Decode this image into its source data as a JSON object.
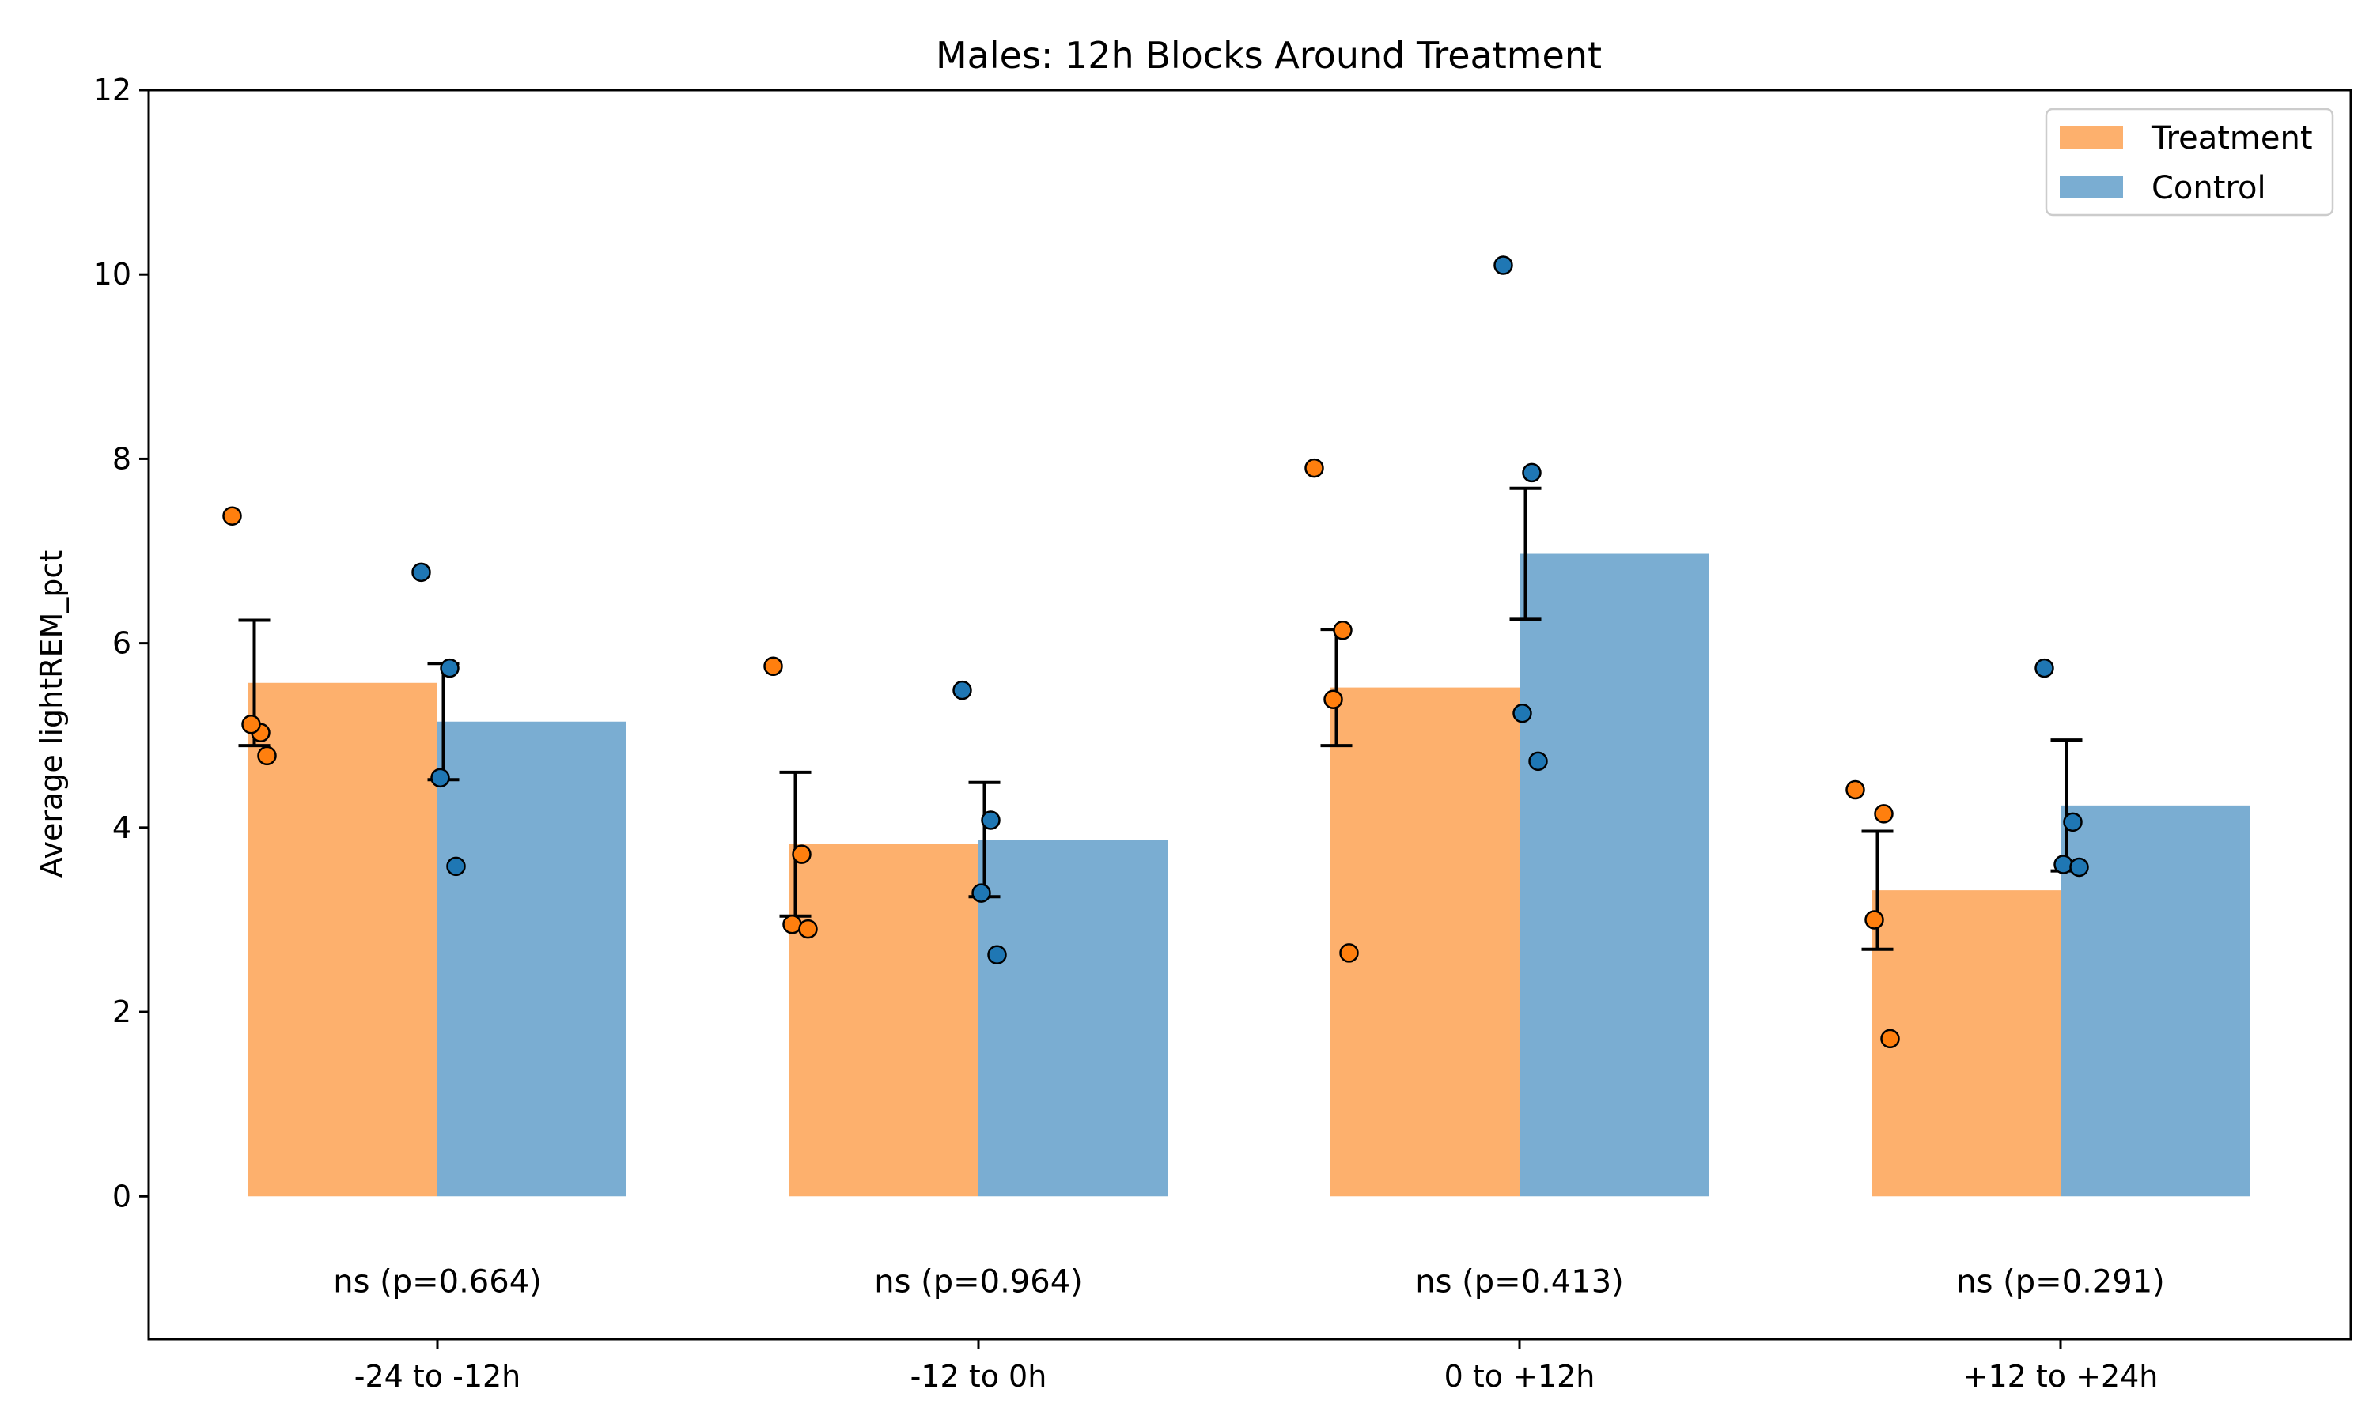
{
  "chart_data": {
    "type": "bar",
    "title": "Males: 12h Blocks Around Treatment",
    "xlabel": "",
    "ylabel": "Average lightREM_pct",
    "ylim": [
      -1.55,
      12
    ],
    "yticks": [
      0,
      2,
      4,
      6,
      8,
      10,
      12
    ],
    "grid": false,
    "legend_position": "top-right",
    "categories": [
      "-24 to -12h",
      "-12 to 0h",
      "0 to +12h",
      "+12 to +24h"
    ],
    "series": [
      {
        "name": "Treatment",
        "bar_color": "#fdb06d",
        "point_color": "#ff7f0e",
        "values": [
          5.57,
          3.82,
          5.52,
          3.32
        ],
        "error": [
          0.68,
          0.78,
          0.63,
          0.64
        ],
        "points": [
          [
            7.38,
            5.03,
            5.12,
            4.78
          ],
          [
            5.75,
            3.71,
            2.95,
            2.9
          ],
          [
            7.9,
            6.14,
            5.39,
            2.64
          ],
          [
            4.41,
            4.15,
            3.0,
            1.71
          ]
        ]
      },
      {
        "name": "Control",
        "bar_color": "#7aadd2",
        "point_color": "#1f77b4",
        "values": [
          5.15,
          3.87,
          6.97,
          4.24
        ],
        "error": [
          0.63,
          0.62,
          0.71,
          0.71
        ],
        "points": [
          [
            6.77,
            5.73,
            4.54,
            3.58
          ],
          [
            5.49,
            4.08,
            3.29,
            2.62
          ],
          [
            10.1,
            7.85,
            5.24,
            4.72
          ],
          [
            5.73,
            4.06,
            3.6,
            3.57
          ]
        ]
      }
    ],
    "annotations": [
      "ns (p=0.664)",
      "ns (p=0.964)",
      "ns (p=0.413)",
      "ns (p=0.291)"
    ],
    "annotation_y": -0.92
  }
}
